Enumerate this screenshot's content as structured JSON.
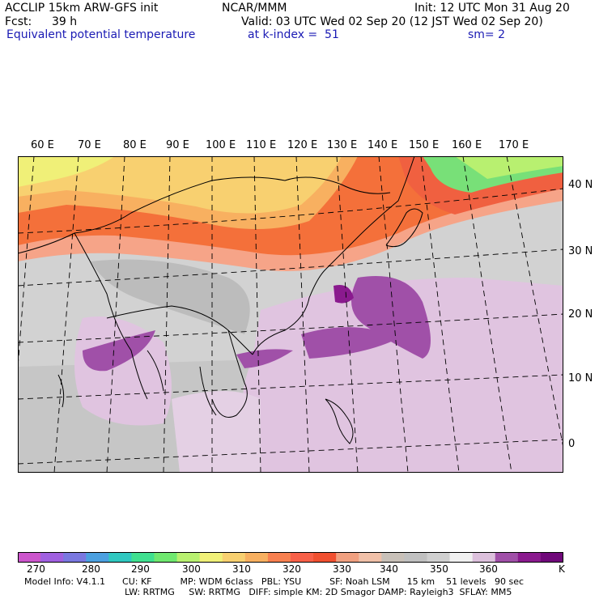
{
  "header": {
    "model": "ACCLIP 15km ARW-GFS init",
    "org": "NCAR/MMM",
    "init": "Init: 12 UTC Mon 31 Aug 20",
    "fcst_label": "Fcst:",
    "fcst_value": "39 h",
    "valid": "Valid: 03 UTC Wed 02 Sep 20 (12 JST Wed 02 Sep 20)",
    "field": "Equivalent potential temperature",
    "level": "at k-index =  51",
    "smooth": "sm= 2"
  },
  "map": {
    "lon_labels": [
      "60 E",
      "70 E",
      "80 E",
      "90 E",
      "100 E",
      "110 E",
      "120 E",
      "130 E",
      "140 E",
      "150 E",
      "160 E",
      "170 E"
    ],
    "lat_labels": [
      "40 N",
      "30 N",
      "20 N",
      "10 N",
      "0"
    ]
  },
  "colorbar": {
    "colors": [
      "#cc55cc",
      "#a060e0",
      "#7a78e0",
      "#4ca0e0",
      "#30c8c0",
      "#40e090",
      "#70e870",
      "#b8f070",
      "#f0f078",
      "#f8d070",
      "#f8b060",
      "#f88050",
      "#f86048",
      "#f05030",
      "#f0a080",
      "#f0c0a8",
      "#c8c0b8",
      "#c0c0c0",
      "#d0d0d0",
      "#f0f0f0",
      "#dcc0dc",
      "#a050a8",
      "#8a1a8e",
      "#70087a"
    ],
    "labels": [
      "270",
      "280",
      "290",
      "300",
      "310",
      "320",
      "330",
      "340",
      "350",
      "360"
    ],
    "unit": "K"
  },
  "footer": {
    "line1": "Model Info: V4.1.1      CU: KF          MP: WDM 6class   PBL: YSU          SF: Noah LSM      15 km    51 levels   90 sec",
    "line2": "LW: RRTMG     SW: RRTMG   DIFF: simple KM: 2D Smagor DAMP: Rayleigh3  SFLAY: MM5"
  }
}
